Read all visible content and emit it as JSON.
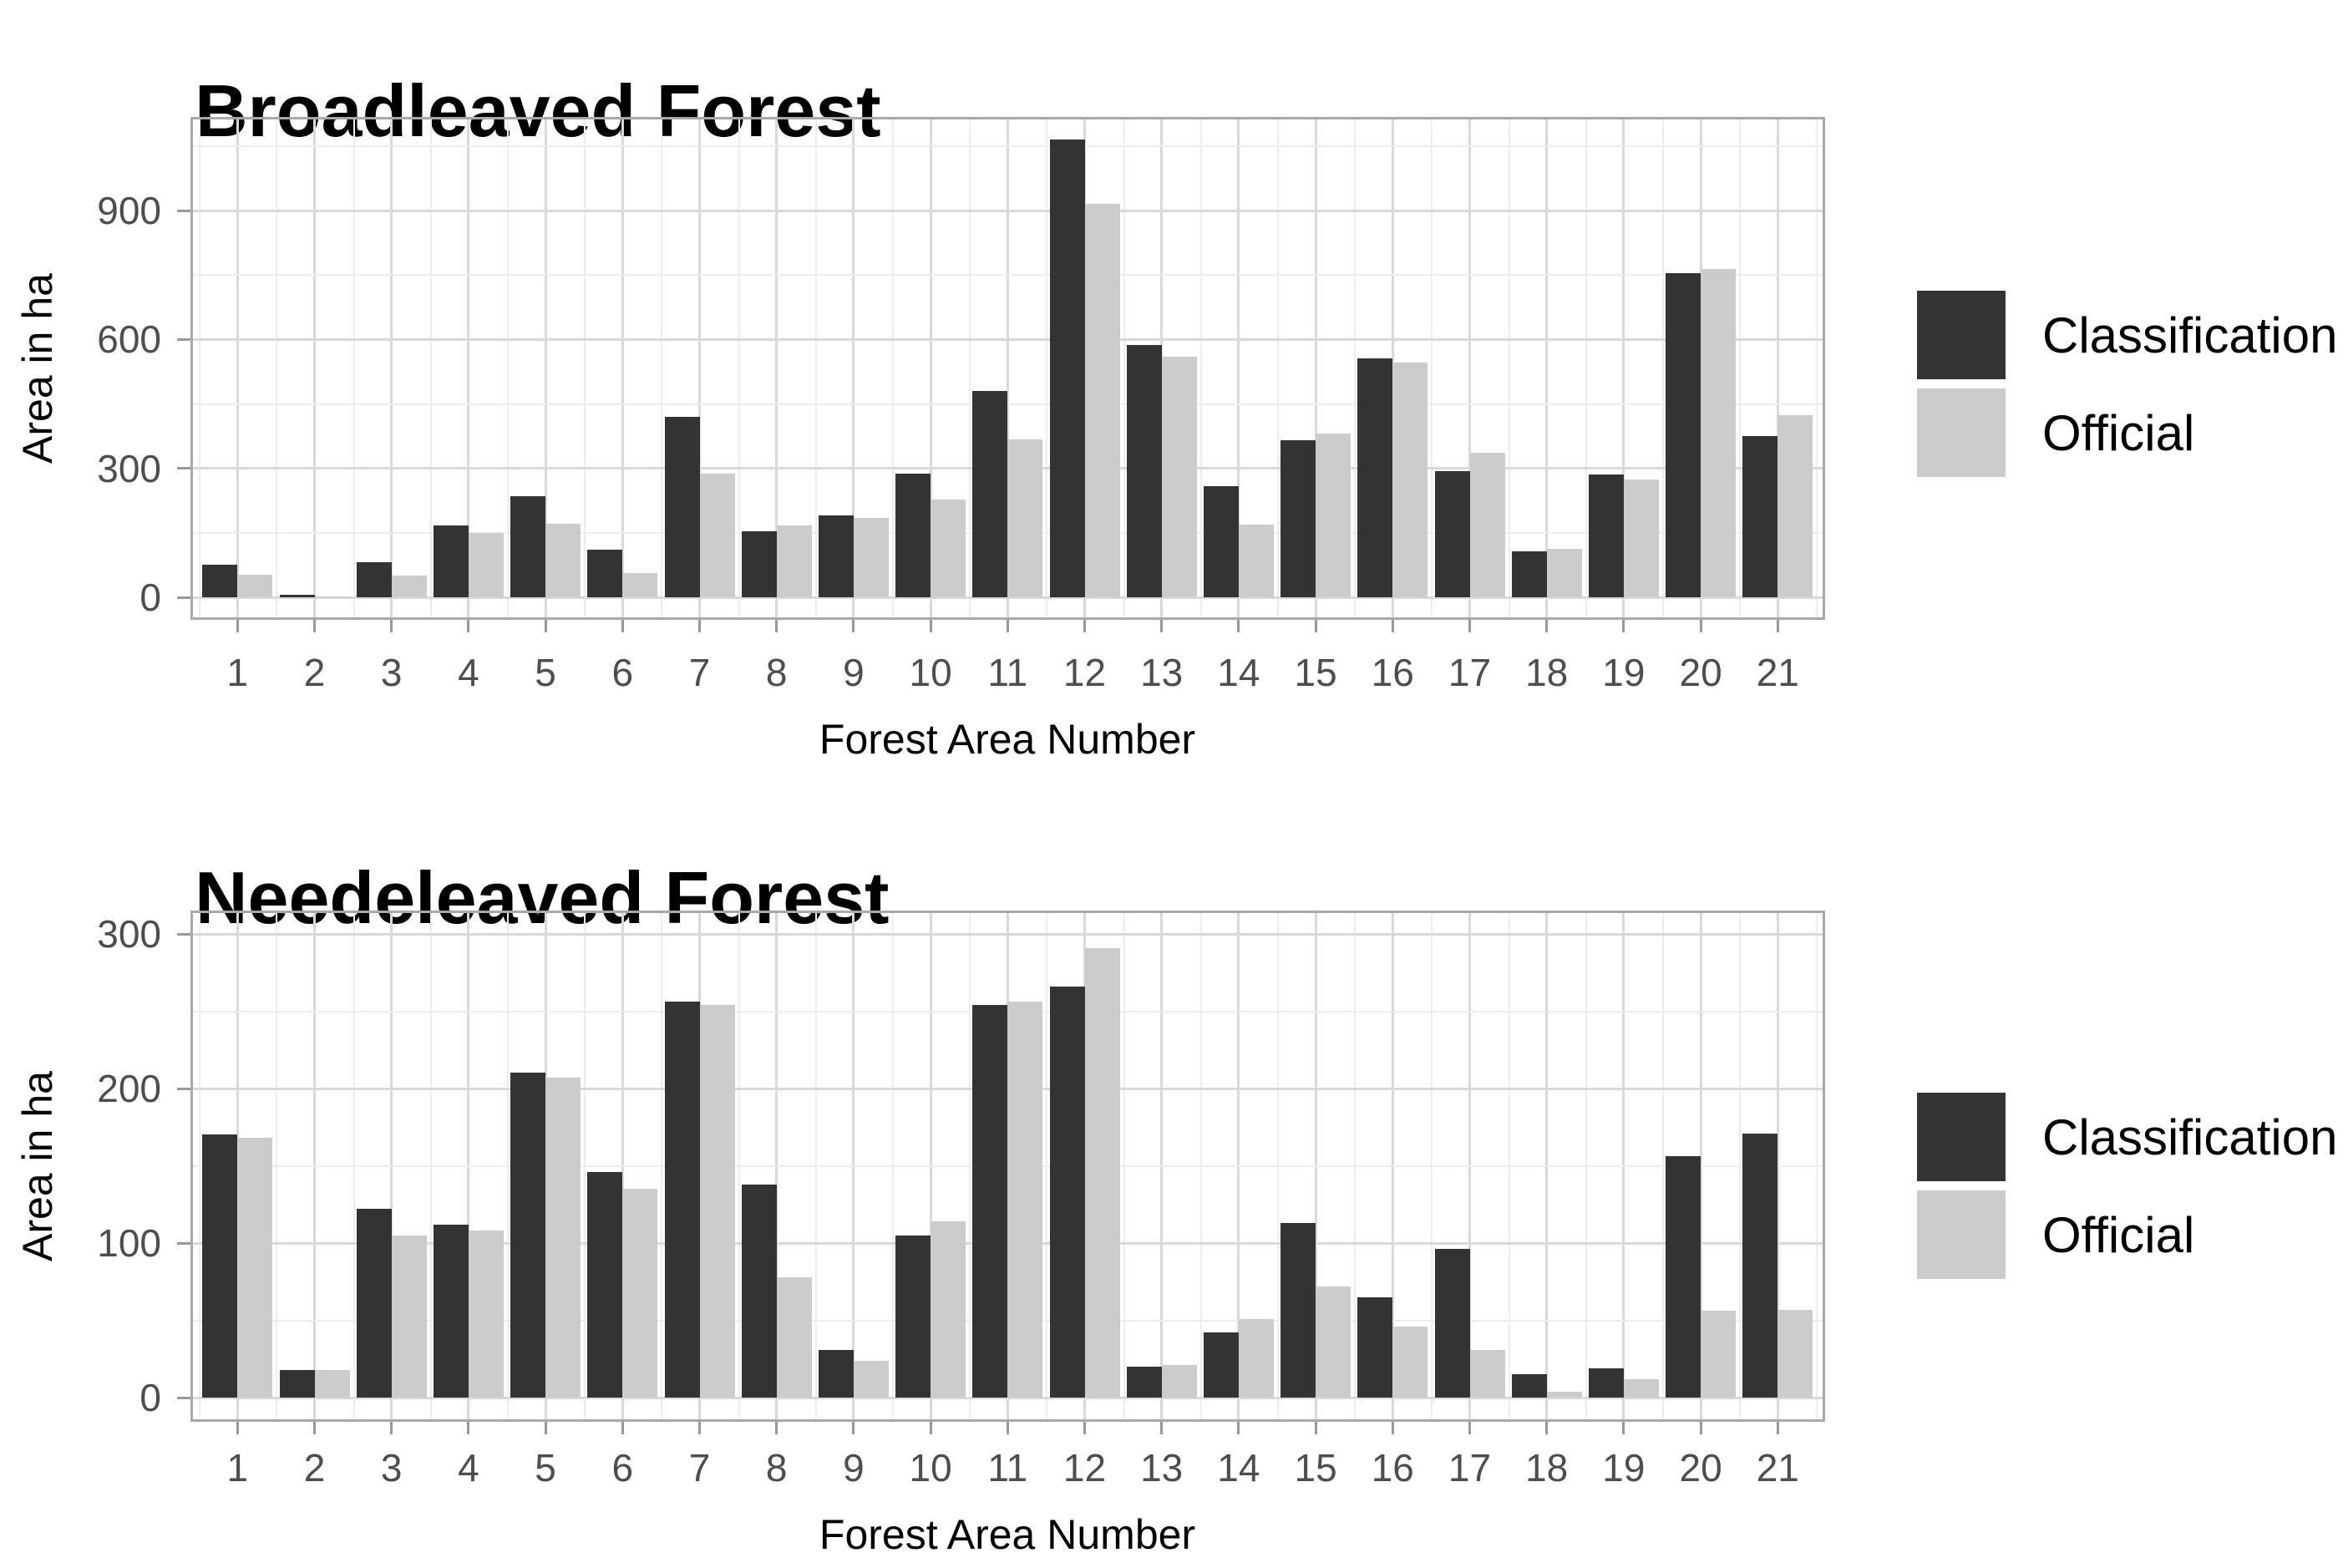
{
  "colors": {
    "classification": "#333333",
    "official": "#cccccc",
    "grid_major": "#d9d9d9",
    "grid_minor": "#ededed",
    "panel_border": "#a9a9a9",
    "tick_mark": "#999999",
    "tick_label": "#4d4d4d",
    "text": "#000000",
    "background": "#ffffff"
  },
  "legend": {
    "items": [
      {
        "label": "Classification",
        "color": "#333333"
      },
      {
        "label": "Official",
        "color": "#cccccc"
      }
    ],
    "position": "right"
  },
  "chart_data": [
    {
      "type": "bar",
      "title": "Broadleaved Forest",
      "xlabel": "Forest Area Number",
      "ylabel": "Area in ha",
      "categories": [
        "1",
        "2",
        "3",
        "4",
        "5",
        "6",
        "7",
        "8",
        "9",
        "10",
        "11",
        "12",
        "13",
        "14",
        "15",
        "16",
        "17",
        "18",
        "19",
        "20",
        "21"
      ],
      "series": [
        {
          "name": "Classification",
          "color": "#333333",
          "values": [
            75,
            5,
            81,
            167,
            235,
            110,
            420,
            154,
            191,
            287,
            480,
            1065,
            587,
            258,
            366,
            556,
            293,
            107,
            286,
            754,
            375
          ]
        },
        {
          "name": "Official",
          "color": "#cccccc",
          "values": [
            52,
            2,
            50,
            150,
            172,
            57,
            288,
            167,
            185,
            227,
            368,
            915,
            560,
            169,
            381,
            546,
            336,
            113,
            274,
            764,
            424
          ]
        }
      ],
      "yticks": [
        0,
        300,
        600,
        900
      ],
      "yminor": [
        150,
        450,
        750,
        1050
      ],
      "ylim": [
        0,
        1126
      ],
      "grid": true,
      "legend_position": "right"
    },
    {
      "type": "bar",
      "title": "Needeleaved Forest",
      "xlabel": "Forest Area Number",
      "ylabel": "Area in ha",
      "categories": [
        "1",
        "2",
        "3",
        "4",
        "5",
        "6",
        "7",
        "8",
        "9",
        "10",
        "11",
        "12",
        "13",
        "14",
        "15",
        "16",
        "17",
        "18",
        "19",
        "20",
        "21"
      ],
      "series": [
        {
          "name": "Classification",
          "color": "#333333",
          "values": [
            170,
            18,
            122,
            112,
            210,
            146,
            256,
            138,
            31,
            105,
            254,
            266,
            20,
            42,
            113,
            65,
            96,
            15,
            19,
            156,
            171
          ]
        },
        {
          "name": "Official",
          "color": "#cccccc",
          "values": [
            168,
            18,
            105,
            108,
            207,
            135,
            254,
            78,
            24,
            114,
            256,
            291,
            21,
            51,
            72,
            46,
            31,
            4,
            12,
            56,
            57
          ]
        }
      ],
      "yticks": [
        0,
        100,
        200,
        300
      ],
      "yminor": [
        50,
        150,
        250
      ],
      "ylim": [
        0,
        307
      ],
      "grid": true,
      "legend_position": "right"
    }
  ]
}
